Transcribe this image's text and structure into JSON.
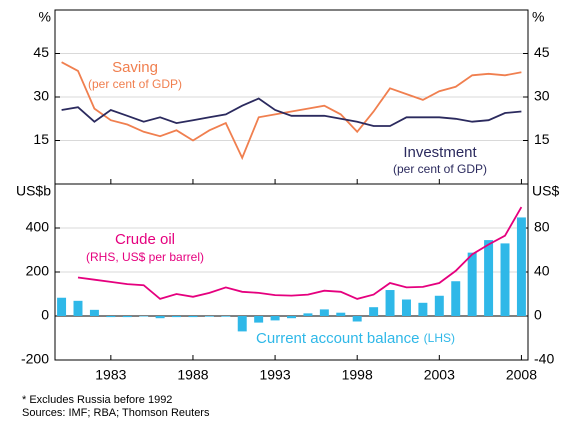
{
  "chart_data": [
    {
      "type": "line",
      "x": [
        1980,
        1981,
        1982,
        1983,
        1984,
        1985,
        1986,
        1987,
        1988,
        1989,
        1990,
        1991,
        1992,
        1993,
        1994,
        1995,
        1996,
        1997,
        1998,
        1999,
        2000,
        2001,
        2002,
        2003,
        2004,
        2005,
        2006,
        2007,
        2008
      ],
      "xlim": [
        1979.6,
        2008.4
      ],
      "ylim": [
        0,
        60
      ],
      "yticks": [
        15,
        30,
        45
      ],
      "yunit": "%",
      "y2lim": [
        0,
        60
      ],
      "y2ticks": [
        15,
        30,
        45
      ],
      "y2unit": "%",
      "grid": true,
      "series": [
        {
          "name": "Saving",
          "sublabel": "(per cent of GDP)",
          "color": "#f07f4f",
          "values": [
            42,
            39,
            26,
            22,
            20.5,
            18,
            16.5,
            18.5,
            15,
            18.5,
            21,
            9,
            23,
            24,
            25,
            26,
            27,
            24,
            18,
            25,
            33,
            31,
            29,
            32,
            33.5,
            37.5,
            38,
            37.5,
            38.5
          ]
        },
        {
          "name": "Investment",
          "sublabel": "(per cent of GDP)",
          "color": "#2b2a5e",
          "values": [
            25.5,
            26.5,
            21.5,
            25.5,
            23.5,
            21.5,
            23,
            21,
            22,
            23,
            24,
            27,
            29.5,
            25.5,
            23.5,
            23.5,
            23.5,
            22.5,
            21.5,
            20,
            20,
            23,
            23,
            23,
            22.5,
            21.5,
            22,
            24.5,
            25
          ]
        }
      ]
    },
    {
      "type": "combo",
      "x": [
        1980,
        1981,
        1982,
        1983,
        1984,
        1985,
        1986,
        1987,
        1988,
        1989,
        1990,
        1991,
        1992,
        1993,
        1994,
        1995,
        1996,
        1997,
        1998,
        1999,
        2000,
        2001,
        2002,
        2003,
        2004,
        2005,
        2006,
        2007,
        2008
      ],
      "xlim": [
        1979.6,
        2008.4
      ],
      "xticks": [
        1983,
        1988,
        1993,
        1998,
        2003,
        2008
      ],
      "ylim": [
        -200,
        600
      ],
      "yticks": [
        -200,
        0,
        200,
        400
      ],
      "yunit": "US$b",
      "y2lim": [
        -40,
        120
      ],
      "y2ticks": [
        -40,
        0,
        40,
        80
      ],
      "y2unit": "US$",
      "grid": true,
      "series": [
        {
          "name": "Current account balance",
          "sublabel": "(LHS)",
          "color": "#2fb8e8",
          "kind": "bar",
          "values": [
            83,
            69,
            28,
            -5,
            -5,
            -2,
            -10,
            -5,
            -5,
            -3,
            -3,
            -70,
            -30,
            -20,
            -10,
            12,
            30,
            15,
            -25,
            40,
            118,
            75,
            60,
            92,
            158,
            288,
            345,
            330,
            448
          ]
        },
        {
          "name": "Crude oil",
          "sublabel": "(RHS, US$ per barrel)",
          "color": "#e5007e",
          "kind": "line",
          "axis": "y2",
          "values": [
            null,
            35,
            33,
            31,
            29,
            28,
            15.5,
            20,
            17.5,
            21,
            26,
            22,
            21,
            19,
            18.5,
            19.5,
            23,
            22,
            15.5,
            19.5,
            30,
            26,
            26.5,
            30,
            41,
            56,
            65,
            73,
            99
          ]
        }
      ]
    }
  ],
  "footnote": "*    Excludes Russia before 1992",
  "sources": "Sources: IMF; RBA; Thomson Reuters"
}
